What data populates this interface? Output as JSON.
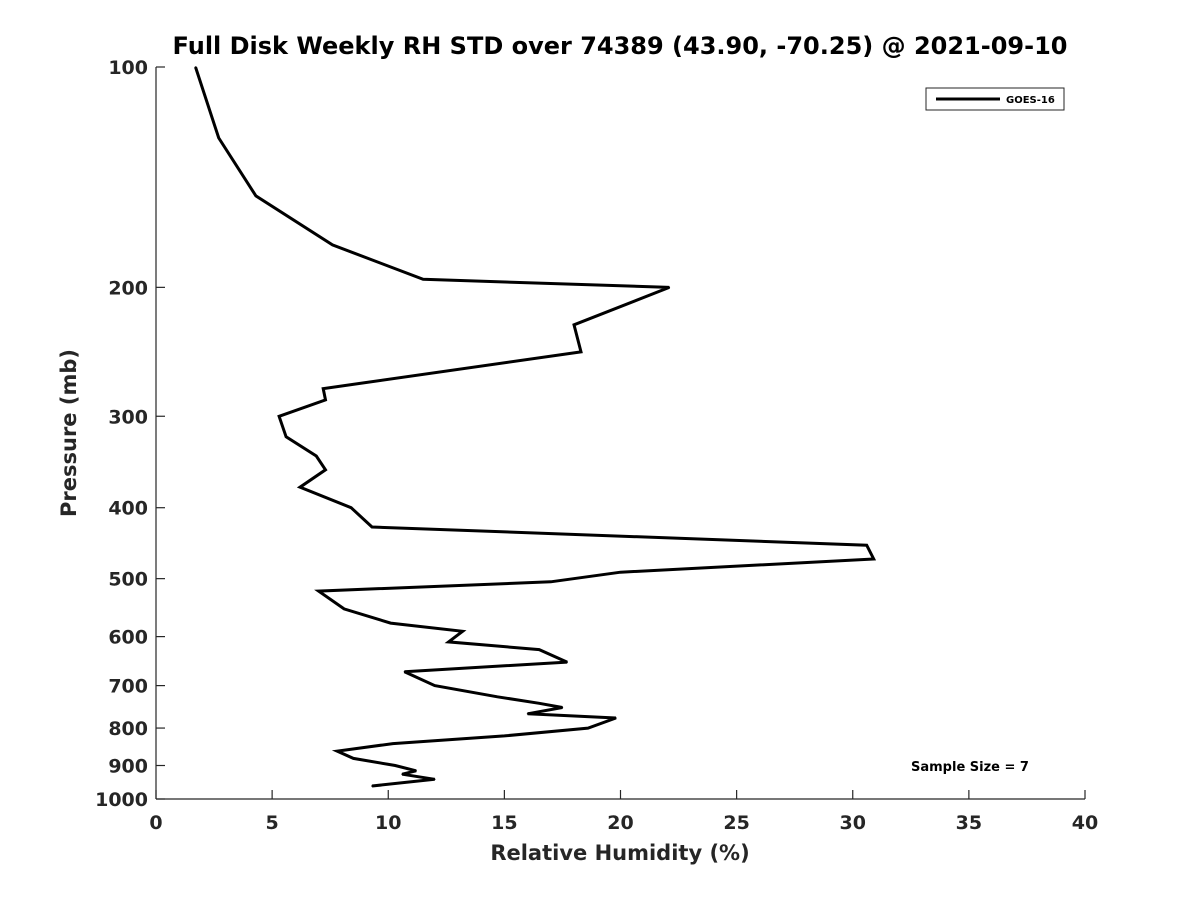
{
  "chart_data": {
    "type": "line",
    "title": "Full Disk Weekly RH STD over 74389 (43.90, -70.25) @ 2021-09-10",
    "xlabel": "Relative Humidity (%)",
    "ylabel": "Pressure (mb)",
    "xlim": [
      0,
      40
    ],
    "ylim": [
      100,
      1000
    ],
    "y_scale": "log",
    "y_reversed": true,
    "x_ticks": [
      "0",
      "5",
      "10",
      "15",
      "20",
      "25",
      "30",
      "35",
      "40"
    ],
    "y_ticks": [
      "100",
      "200",
      "300",
      "400",
      "500",
      "600",
      "700",
      "800",
      "900",
      "1000"
    ],
    "grid": false,
    "legend_position": "top-right",
    "annotation": "Sample Size = 7",
    "series": [
      {
        "name": "GOES-16",
        "color": "#000000",
        "points": [
          [
            1.7,
            100
          ],
          [
            2.7,
            125
          ],
          [
            4.3,
            150
          ],
          [
            7.6,
            175
          ],
          [
            11.5,
            195
          ],
          [
            22.1,
            200
          ],
          [
            18.0,
            225
          ],
          [
            18.3,
            245
          ],
          [
            7.2,
            275
          ],
          [
            7.3,
            285
          ],
          [
            5.3,
            300
          ],
          [
            5.6,
            320
          ],
          [
            6.9,
            340
          ],
          [
            7.3,
            355
          ],
          [
            6.2,
            375
          ],
          [
            8.4,
            400
          ],
          [
            9.3,
            425
          ],
          [
            30.6,
            450
          ],
          [
            30.9,
            470
          ],
          [
            20.0,
            490
          ],
          [
            17.0,
            505
          ],
          [
            7.0,
            520
          ],
          [
            8.1,
            550
          ],
          [
            10.1,
            575
          ],
          [
            13.2,
            590
          ],
          [
            12.6,
            610
          ],
          [
            16.5,
            625
          ],
          [
            17.7,
            650
          ],
          [
            10.7,
            670
          ],
          [
            12.0,
            700
          ],
          [
            14.7,
            725
          ],
          [
            16.5,
            740
          ],
          [
            17.5,
            750
          ],
          [
            16.0,
            765
          ],
          [
            19.8,
            775
          ],
          [
            18.6,
            800
          ],
          [
            15.0,
            820
          ],
          [
            10.2,
            840
          ],
          [
            7.8,
            860
          ],
          [
            8.5,
            880
          ],
          [
            10.3,
            900
          ],
          [
            11.2,
            915
          ],
          [
            10.6,
            925
          ],
          [
            12.0,
            940
          ],
          [
            9.3,
            960
          ]
        ]
      }
    ]
  }
}
